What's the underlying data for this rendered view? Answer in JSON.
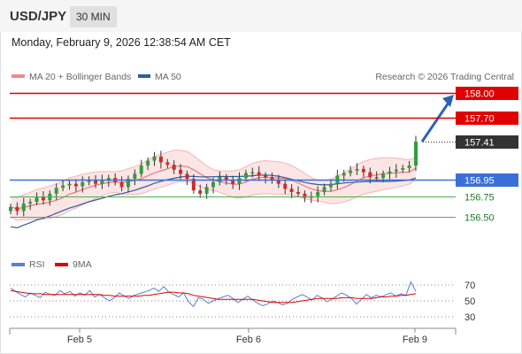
{
  "header": {
    "symbol": "USD/JPY",
    "timeframe": "30 MIN",
    "datetime": "Monday, February 9, 2026 12:38:54 AM CET"
  },
  "legend": {
    "items": [
      {
        "label": "MA 20 + Bollinger Bands",
        "color": "#f08a8a"
      },
      {
        "label": "MA 50",
        "color": "#2d5f9e"
      }
    ],
    "copyright": "Research © 2026 Trading Central"
  },
  "rsi_legend": {
    "items": [
      {
        "label": "RSI",
        "color": "#5b7fd4"
      },
      {
        "label": "9MA",
        "color": "#e00000"
      }
    ]
  },
  "colors": {
    "resistance": "#e00000",
    "pivot": "#3b6fd8",
    "support": "#4caf50",
    "current": "#333333",
    "candle_up": "#2e9e3e",
    "candle_down": "#d62828",
    "band_fill": "#fbdcdc",
    "arrow": "#2b62b8"
  },
  "chart_data": [
    {
      "type": "candlestick",
      "title": "USD/JPY 30 MIN",
      "x_labels": [
        "Feb 5",
        "Feb 6",
        "Feb 9"
      ],
      "ylim": [
        156.3,
        158.1
      ],
      "levels": [
        {
          "value": 158.0,
          "label": "158.00",
          "kind": "resistance"
        },
        {
          "value": 157.7,
          "label": "157.70",
          "kind": "resistance"
        },
        {
          "value": 157.41,
          "label": "157.41",
          "kind": "current"
        },
        {
          "value": 156.95,
          "label": "156.95",
          "kind": "pivot"
        },
        {
          "value": 156.75,
          "label": "156.75",
          "kind": "support"
        },
        {
          "value": 156.5,
          "label": "156.50",
          "kind": "support"
        }
      ],
      "close_series": [
        156.62,
        156.57,
        156.66,
        156.68,
        156.74,
        156.7,
        156.78,
        156.85,
        156.88,
        156.9,
        156.87,
        156.92,
        156.95,
        156.9,
        156.94,
        156.97,
        156.92,
        156.86,
        156.96,
        157.02,
        157.12,
        157.18,
        157.23,
        157.16,
        157.13,
        157.07,
        157.02,
        156.96,
        156.82,
        156.78,
        156.86,
        156.92,
        156.98,
        156.94,
        156.9,
        156.97,
        157.03,
        157.04,
        157.0,
        156.98,
        156.94,
        156.9,
        156.84,
        156.8,
        156.78,
        156.73,
        156.75,
        156.8,
        156.86,
        156.9,
        157.0,
        157.03,
        157.06,
        157.08,
        157.04,
        156.98,
        156.97,
        157.02,
        157.05,
        157.07,
        157.09,
        157.12,
        157.41
      ]
    },
    {
      "type": "line",
      "title": "RSI",
      "series": [
        {
          "name": "RSI"
        },
        {
          "name": "9MA"
        }
      ],
      "yticks": [
        70,
        50,
        30
      ],
      "ylim": [
        20,
        80
      ],
      "rsi": [
        66,
        62,
        58,
        55,
        60,
        57,
        54,
        61,
        58,
        57,
        63,
        59,
        62,
        56,
        60,
        57,
        63,
        55,
        58,
        54,
        50,
        54,
        60,
        56,
        53,
        57,
        59,
        61,
        63,
        66,
        62,
        68,
        61,
        58,
        55,
        60,
        49,
        43,
        54,
        52,
        47,
        50,
        53,
        55,
        57,
        53,
        48,
        52,
        56,
        51,
        47,
        44,
        46,
        50,
        48,
        45,
        47,
        52,
        55,
        58,
        55,
        51,
        57,
        54,
        49,
        52,
        56,
        60,
        57,
        53,
        46,
        52,
        58,
        54,
        57,
        55,
        58,
        60,
        56,
        59,
        57,
        74,
        62
      ],
      "ma9": [
        63,
        62,
        61,
        60,
        59,
        59,
        59,
        58,
        58,
        58,
        58,
        58,
        58,
        58,
        58,
        58,
        58,
        58,
        58,
        57,
        57,
        56,
        56,
        56,
        56,
        56,
        56,
        57,
        57,
        58,
        59,
        60,
        61,
        61,
        60,
        60,
        59,
        57,
        56,
        55,
        54,
        53,
        52,
        52,
        52,
        52,
        52,
        52,
        52,
        52,
        51,
        50,
        49,
        48,
        48,
        48,
        48,
        48,
        49,
        50,
        51,
        52,
        53,
        53,
        53,
        53,
        53,
        54,
        54,
        54,
        53,
        53,
        53,
        53,
        54,
        55,
        55,
        56,
        56,
        57,
        57,
        58,
        59
      ]
    }
  ]
}
